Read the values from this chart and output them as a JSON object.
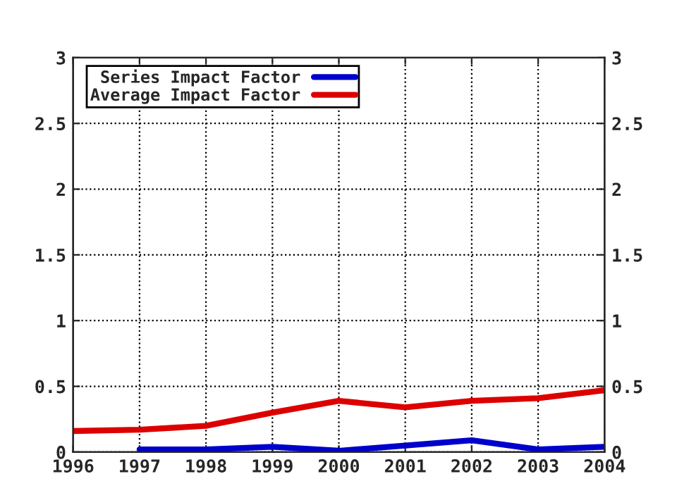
{
  "chart_data": {
    "type": "line",
    "x": [
      1996,
      1997,
      1998,
      1999,
      2000,
      2001,
      2002,
      2003,
      2004
    ],
    "series": [
      {
        "name": "Series Impact Factor",
        "color": "#0000cc",
        "x": [
          1997,
          1998,
          1999,
          2000,
          2001,
          2002,
          2003,
          2004
        ],
        "values": [
          0.02,
          0.02,
          0.04,
          0.01,
          0.05,
          0.09,
          0.02,
          0.04
        ]
      },
      {
        "name": "Average Impact Factor",
        "color": "#dd0000",
        "values": [
          0.16,
          0.17,
          0.2,
          0.3,
          0.39,
          0.34,
          0.39,
          0.41,
          0.47
        ]
      }
    ],
    "xlim": [
      1996,
      2004
    ],
    "xticks": [
      1996,
      1997,
      1998,
      1999,
      2000,
      2001,
      2002,
      2003,
      2004
    ],
    "ylim": [
      0,
      3
    ],
    "yticks": [
      0,
      {
        "value": 0.5,
        "label": "0.5"
      },
      1,
      {
        "value": 1.5,
        "label": "1.5"
      },
      2,
      {
        "value": 2.5,
        "label": "2.5"
      },
      3
    ],
    "y2lim": [
      0,
      3
    ],
    "y2ticks": [
      0,
      {
        "value": 0.5,
        "label": "0.5"
      },
      1,
      {
        "value": 1.5,
        "label": "1.5"
      },
      2,
      {
        "value": 2.5,
        "label": "2.5"
      },
      3
    ],
    "grid": true,
    "legend": "top left",
    "line_style": "solid",
    "marker": "none"
  }
}
